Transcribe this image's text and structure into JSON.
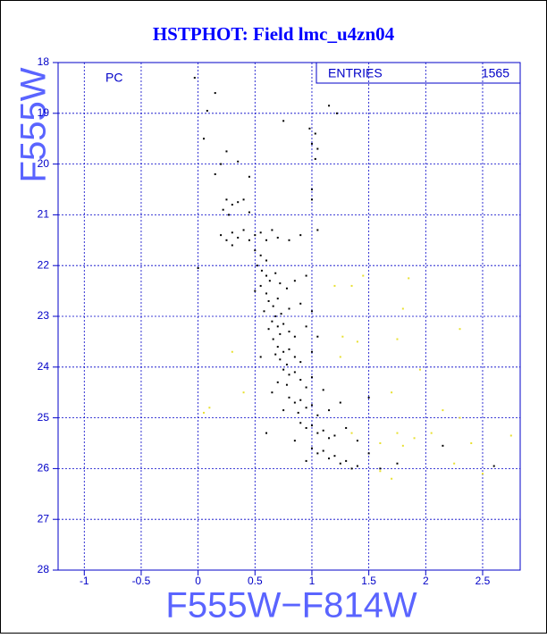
{
  "chart_data": {
    "type": "scatter",
    "title": "HSTPHOT: Field lmc_u4zn04",
    "annotation": "PC",
    "stats_label": "ENTRIES",
    "entries": 1565,
    "x_label": "F555W−F814W",
    "y_label": "F555W",
    "xlim": [
      -1.23,
      2.83
    ],
    "ylim": [
      28,
      18
    ],
    "xticks": [
      -1,
      -0.5,
      0,
      0.5,
      1,
      1.5,
      2,
      2.5
    ],
    "yticks": [
      18,
      19,
      20,
      21,
      22,
      23,
      24,
      25,
      26,
      27,
      28
    ],
    "grid": true,
    "series": [
      {
        "color": "#000000",
        "x": [
          -0.03,
          0.15,
          0.08,
          1.15,
          1.22,
          0.75,
          0.98,
          1.03,
          1.0,
          1.05,
          1.03,
          0.05,
          0.25,
          0.2,
          0.35,
          0.15,
          0.45,
          1.0,
          1.0,
          0.25,
          0.3,
          0.35,
          0.22,
          0.4,
          0.27,
          0.45,
          0.2,
          0.25,
          0.3,
          0.35,
          0.4,
          0.45,
          0.5,
          0.55,
          0.6,
          0.65,
          0.7,
          0.8,
          0.9,
          0.3,
          0.5,
          0.55,
          0.6,
          1.05,
          0.0,
          0.52,
          0.56,
          0.6,
          0.63,
          0.55,
          0.68,
          0.72,
          0.5,
          0.6,
          0.78,
          0.85,
          0.95,
          0.62,
          0.66,
          0.7,
          0.58,
          0.73,
          0.68,
          0.8,
          0.9,
          1.0,
          0.65,
          0.7,
          0.75,
          0.72,
          0.66,
          0.8,
          0.85,
          0.62,
          0.95,
          1.05,
          0.7,
          0.75,
          0.8,
          0.72,
          0.78,
          0.85,
          0.9,
          0.68,
          1.0,
          0.55,
          0.75,
          0.8,
          0.85,
          0.9,
          0.78,
          0.95,
          1.0,
          0.7,
          1.1,
          0.65,
          0.8,
          0.85,
          0.9,
          0.95,
          1.0,
          0.88,
          1.05,
          1.15,
          0.75,
          1.25,
          1.5,
          0.9,
          0.95,
          1.0,
          1.05,
          1.1,
          1.15,
          1.2,
          0.85,
          1.3,
          1.4,
          0.6,
          1.0,
          1.05,
          1.1,
          1.15,
          1.2,
          1.25,
          1.3,
          1.35,
          1.4,
          1.5,
          1.6,
          0.95,
          1.75,
          2.15,
          2.6
        ],
        "values": [
          18.3,
          18.6,
          18.95,
          18.85,
          19.0,
          19.15,
          19.3,
          19.4,
          19.6,
          19.7,
          19.9,
          19.5,
          19.75,
          20.0,
          19.95,
          20.2,
          20.25,
          20.5,
          20.7,
          20.7,
          20.8,
          20.75,
          20.9,
          20.7,
          21.0,
          20.95,
          21.4,
          21.5,
          21.35,
          21.45,
          21.3,
          21.5,
          21.4,
          21.35,
          21.5,
          21.3,
          21.45,
          21.5,
          21.4,
          21.6,
          21.7,
          21.8,
          21.9,
          21.3,
          22.05,
          22.0,
          22.1,
          22.2,
          22.3,
          22.4,
          22.15,
          22.35,
          22.5,
          22.55,
          22.45,
          22.3,
          22.2,
          22.7,
          22.8,
          22.65,
          22.9,
          22.95,
          23.0,
          22.85,
          22.75,
          22.9,
          23.1,
          23.2,
          23.15,
          23.35,
          23.45,
          23.3,
          23.4,
          23.25,
          23.2,
          23.4,
          23.6,
          23.7,
          23.65,
          23.85,
          23.95,
          23.8,
          23.9,
          23.75,
          23.7,
          23.8,
          24.05,
          24.15,
          24.1,
          24.25,
          24.35,
          24.4,
          24.2,
          24.3,
          24.45,
          24.5,
          24.6,
          24.7,
          24.65,
          24.8,
          24.75,
          24.9,
          24.95,
          24.85,
          24.85,
          24.7,
          24.6,
          25.1,
          25.2,
          25.15,
          25.3,
          25.25,
          25.4,
          25.35,
          25.45,
          25.2,
          25.45,
          25.3,
          25.6,
          25.7,
          25.65,
          25.8,
          25.75,
          25.9,
          25.85,
          26.0,
          25.95,
          25.7,
          26.0,
          25.85,
          25.9,
          25.55,
          25.95
        ]
      },
      {
        "color": "#e8e030",
        "x": [
          0.1,
          0.05,
          0.4,
          1.2,
          1.35,
          1.45,
          1.85,
          1.8,
          1.75,
          1.4,
          1.27,
          1.25,
          2.3,
          1.7,
          1.95,
          2.05,
          1.8,
          1.9,
          1.75,
          2.15,
          2.3,
          2.4,
          2.5,
          2.75,
          2.25,
          1.7,
          1.6,
          1.35,
          1.6,
          0.3
        ],
        "values": [
          24.8,
          24.9,
          24.5,
          22.4,
          22.4,
          22.2,
          22.25,
          22.85,
          23.45,
          23.5,
          23.4,
          23.8,
          23.25,
          24.5,
          24.05,
          25.3,
          25.55,
          25.4,
          25.3,
          24.85,
          25.0,
          25.5,
          26.1,
          25.35,
          25.9,
          26.2,
          26.05,
          25.3,
          25.5,
          23.7
        ]
      }
    ]
  }
}
